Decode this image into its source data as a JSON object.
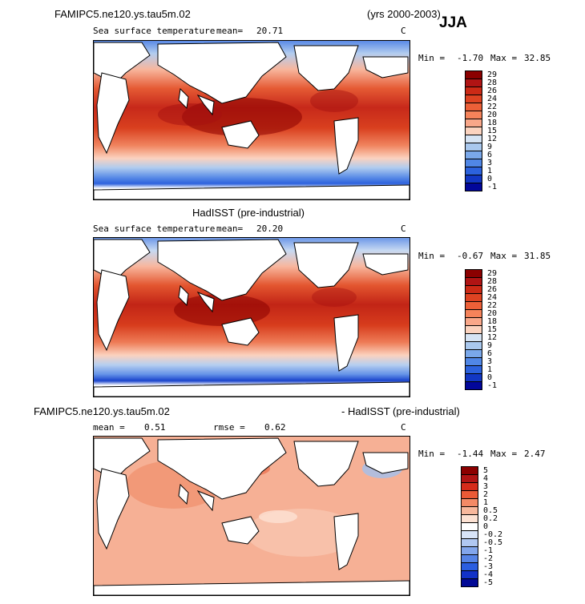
{
  "header": {
    "case_name": "FAMIPC5.ne120.ys.tau5m.02",
    "years": "(yrs 2000-2003)",
    "season": "JJA"
  },
  "panels": [
    {
      "title": "",
      "variable": "Sea surface temperature",
      "stat_label": "mean=",
      "stat_value": "20.71",
      "units": "C",
      "min_label": "Min =",
      "min_value": "-1.70",
      "max_label": "Max =",
      "max_value": "32.85",
      "levels": [
        "29",
        "28",
        "26",
        "24",
        "22",
        "20",
        "18",
        "15",
        "12",
        "9",
        "6",
        "3",
        "1",
        "0",
        "-1"
      ],
      "colors": [
        "#8b0000",
        "#b01414",
        "#cc2a16",
        "#de4322",
        "#ec6038",
        "#f5835a",
        "#f9a789",
        "#fbd3bf",
        "#d6e4f4",
        "#a9c8ee",
        "#7aa8ea",
        "#5087e6",
        "#2c62dd",
        "#1237c4",
        "#02079a"
      ]
    },
    {
      "title": "HadISST (pre-industrial)",
      "variable": "Sea surface temperature",
      "stat_label": "mean=",
      "stat_value": "20.20",
      "units": "C",
      "min_label": "Min =",
      "min_value": "-0.67",
      "max_label": "Max =",
      "max_value": "31.85",
      "levels": [
        "29",
        "28",
        "26",
        "24",
        "22",
        "20",
        "18",
        "15",
        "12",
        "9",
        "6",
        "3",
        "1",
        "0",
        "-1"
      ],
      "colors": [
        "#8b0000",
        "#b01414",
        "#cc2a16",
        "#de4322",
        "#ec6038",
        "#f5835a",
        "#f9a789",
        "#fbd3bf",
        "#d6e4f4",
        "#a9c8ee",
        "#7aa8ea",
        "#5087e6",
        "#2c62dd",
        "#1237c4",
        "#02079a"
      ]
    },
    {
      "title_left": "FAMIPC5.ne120.ys.tau5m.02",
      "title_right": "- HadISST (pre-industrial)",
      "mean_label": "mean =",
      "mean_value": "0.51",
      "rmse_label": "rmse =",
      "rmse_value": "0.62",
      "units": "C",
      "min_label": "Min =",
      "min_value": "-1.44",
      "max_label": "Max =",
      "max_value": "2.47",
      "levels": [
        "5",
        "4",
        "3",
        "2",
        "1",
        "0.5",
        "0.2",
        "0",
        "-0.2",
        "-0.5",
        "-1",
        "-2",
        "-3",
        "-4",
        "-5"
      ],
      "colors": [
        "#8b0000",
        "#b01414",
        "#d52b1a",
        "#ec5a36",
        "#f48a66",
        "#f8b89c",
        "#fde2d3",
        "#ffffff",
        "#d8e4f8",
        "#b0c8f2",
        "#82a6ec",
        "#5684e6",
        "#2b5ee0",
        "#1232c8",
        "#020a96"
      ]
    }
  ]
}
